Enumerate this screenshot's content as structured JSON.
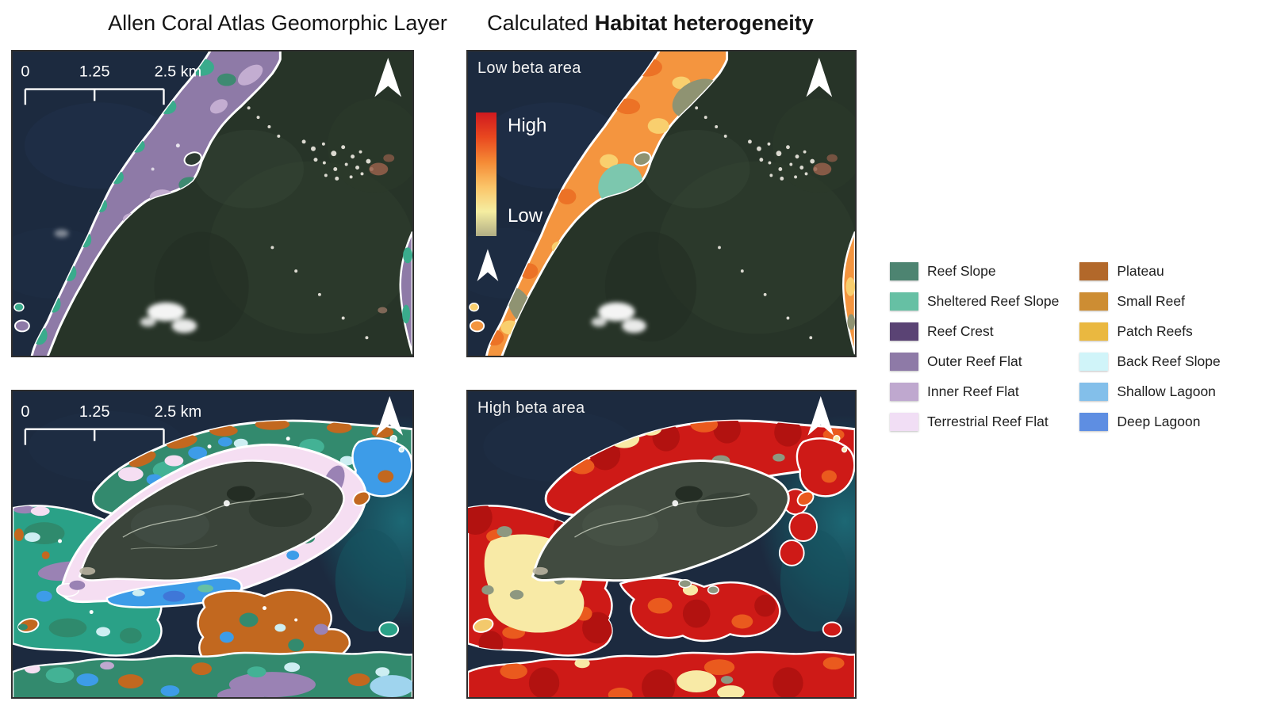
{
  "figure": {
    "title_left": "Allen Coral Atlas Geomorphic Layer",
    "title_right_regular": "Calculated",
    "title_right_bold": "Habitat heterogeneity"
  },
  "panels": {
    "top_left": {
      "scalebar": {
        "start": "0",
        "mid": "1.25",
        "end": "2.5 km"
      }
    },
    "top_right": {
      "label": "Low beta area",
      "colorbar": {
        "high": "High",
        "low": "Low",
        "colors": [
          "#d0191f",
          "#e9481f",
          "#f58a35",
          "#fbc468",
          "#f5eda1",
          "#b1ae85"
        ]
      }
    },
    "bottom_left": {
      "scalebar": {
        "start": "0",
        "mid": "1.25",
        "end": "2.5 km"
      }
    },
    "bottom_right": {
      "label": "High beta area"
    }
  },
  "legend": {
    "columns": [
      [
        {
          "label": "Reef Slope",
          "color": "#4d8471"
        },
        {
          "label": "Sheltered Reef Slope",
          "color": "#66c0a4"
        },
        {
          "label": "Reef Crest",
          "color": "#5a4374"
        },
        {
          "label": "Outer Reef Flat",
          "color": "#8e7aa7"
        },
        {
          "label": "Inner Reef Flat",
          "color": "#bfa8cf"
        },
        {
          "label": "Terrestrial Reef Flat",
          "color": "#f1def5"
        }
      ],
      [
        {
          "label": "Plateau",
          "color": "#b2682a"
        },
        {
          "label": "Small Reef",
          "color": "#cd8d33"
        },
        {
          "label": "Patch Reefs",
          "color": "#eab840"
        },
        {
          "label": "Back Reef Slope",
          "color": "#d0f4f9"
        },
        {
          "label": "Shallow Lagoon",
          "color": "#83bfea"
        },
        {
          "label": "Deep Lagoon",
          "color": "#5e8ee2"
        }
      ]
    ]
  }
}
